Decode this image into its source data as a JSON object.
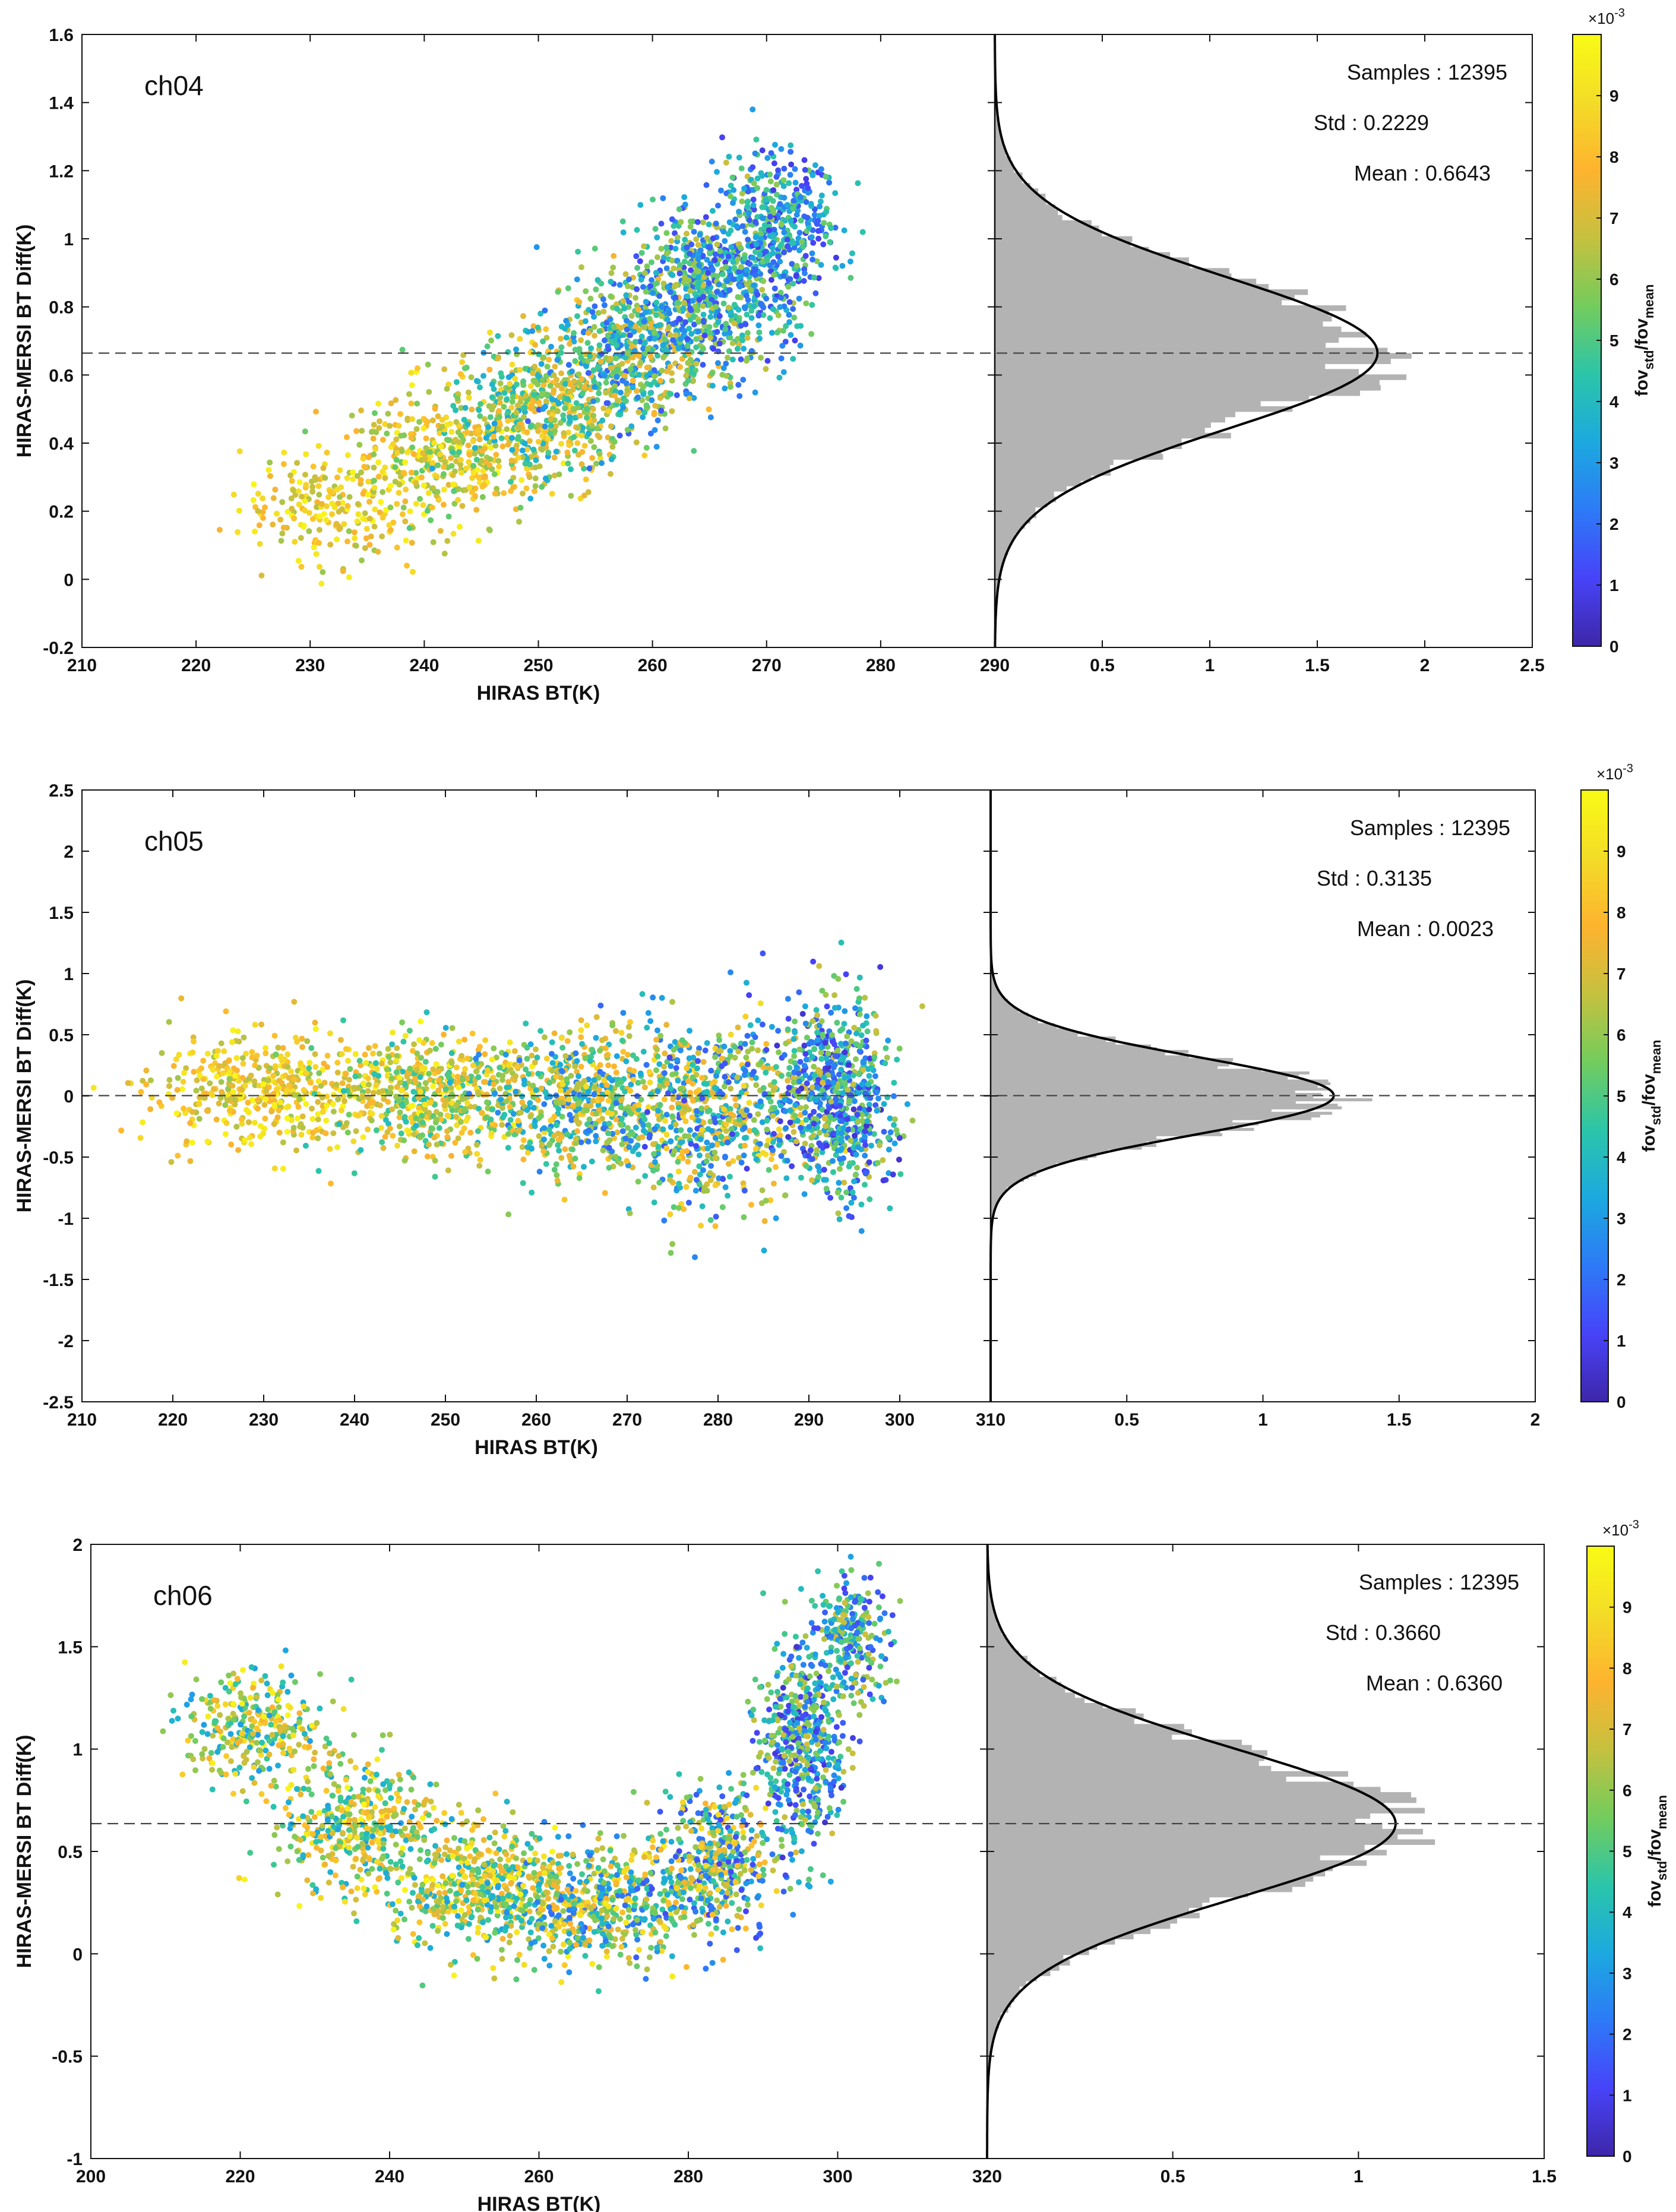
{
  "colors": {
    "hist_fill": "#b3b3b3",
    "frame": "#111111",
    "dashed": "#444444",
    "colormap": [
      "#3e26a8",
      "#4743f8",
      "#2d7af7",
      "#1ca9df",
      "#2bc5a9",
      "#73cc5d",
      "#c5c13f",
      "#feb32f",
      "#f3dc27",
      "#f9fb15"
    ]
  },
  "colorbar": {
    "ticks": [
      "0",
      "1",
      "2",
      "3",
      "4",
      "5",
      "6",
      "7",
      "8",
      "9"
    ],
    "exponent_label": "×10",
    "exponent_power": "-3",
    "title_main": "fov",
    "title_sub1": "std",
    "title_sep": "/fov",
    "title_sub2": "mean"
  },
  "chart_data": [
    {
      "type": "scatter",
      "channel": "ch04",
      "xlabel": "HIRAS BT(K)",
      "ylabel": "HIRAS-MERSI BT Diff(K)",
      "xlim": [
        210,
        290
      ],
      "ylim": [
        -0.2,
        1.6
      ],
      "xticks": [
        "210",
        "220",
        "230",
        "240",
        "250",
        "260",
        "270",
        "280",
        "290"
      ],
      "yticks": [
        "-0.2",
        "0",
        "0.2",
        "0.4",
        "0.6",
        "0.8",
        "1",
        "1.2",
        "1.4",
        "1.6"
      ],
      "hist_xlim": [
        0,
        2.5
      ],
      "hist_xticks": [
        "0.5",
        "1",
        "1.5",
        "2",
        "2.5"
      ],
      "stats": {
        "samples": "Samples : 12395",
        "std": "Std : 0.2229",
        "mean": "Mean : 0.6643"
      },
      "mean": 0.6643,
      "std": 0.2229,
      "hist_peak": 1.78,
      "cloud": [
        {
          "x": 232,
          "y": 0.22,
          "sx": 4,
          "sy": 0.09,
          "n": 220,
          "cmin": 6.0,
          "cmax": 9.9
        },
        {
          "x": 242,
          "y": 0.36,
          "sx": 4,
          "sy": 0.09,
          "n": 380,
          "cmin": 5.0,
          "cmax": 9.9
        },
        {
          "x": 250,
          "y": 0.5,
          "sx": 4,
          "sy": 0.1,
          "n": 480,
          "cmin": 3.0,
          "cmax": 9.0
        },
        {
          "x": 258,
          "y": 0.66,
          "sx": 4,
          "sy": 0.11,
          "n": 600,
          "cmin": 1.5,
          "cmax": 8.0
        },
        {
          "x": 265,
          "y": 0.86,
          "sx": 3.5,
          "sy": 0.12,
          "n": 620,
          "cmin": 1.0,
          "cmax": 7.0
        },
        {
          "x": 271,
          "y": 1.02,
          "sx": 2.5,
          "sy": 0.12,
          "n": 420,
          "cmin": 0.8,
          "cmax": 6.0
        }
      ]
    },
    {
      "type": "scatter",
      "channel": "ch05",
      "xlabel": "HIRAS BT(K)",
      "ylabel": "HIRAS-MERSI BT Diff(K)",
      "xlim": [
        210,
        310
      ],
      "ylim": [
        -2.5,
        2.5
      ],
      "xticks": [
        "210",
        "220",
        "230",
        "240",
        "250",
        "260",
        "270",
        "280",
        "290",
        "300",
        "310"
      ],
      "yticks": [
        "-2.5",
        "-2",
        "-1.5",
        "-1",
        "-0.5",
        "0",
        "0.5",
        "1",
        "1.5",
        "2",
        "2.5"
      ],
      "hist_xlim": [
        0,
        2
      ],
      "hist_xticks": [
        "0.5",
        "1",
        "1.5",
        "2"
      ],
      "stats": {
        "samples": "Samples : 12395",
        "std": "Std : 0.3135",
        "mean": "Mean : 0.0023"
      },
      "mean": 0.0023,
      "std": 0.3135,
      "hist_peak": 1.26,
      "cloud": [
        {
          "x": 230,
          "y": 0.05,
          "sx": 6,
          "sy": 0.22,
          "n": 420,
          "cmin": 6.0,
          "cmax": 9.9
        },
        {
          "x": 248,
          "y": 0.02,
          "sx": 6,
          "sy": 0.25,
          "n": 560,
          "cmin": 4.0,
          "cmax": 9.9
        },
        {
          "x": 265,
          "y": -0.05,
          "sx": 6,
          "sy": 0.3,
          "n": 620,
          "cmin": 2.0,
          "cmax": 9.0
        },
        {
          "x": 280,
          "y": -0.15,
          "sx": 5,
          "sy": 0.38,
          "n": 620,
          "cmin": 1.0,
          "cmax": 9.0
        },
        {
          "x": 293,
          "y": 0.0,
          "sx": 3,
          "sy": 0.38,
          "n": 700,
          "cmin": 0.5,
          "cmax": 7.0
        }
      ]
    },
    {
      "type": "scatter",
      "channel": "ch06",
      "xlabel": "HIRAS BT(K)",
      "ylabel": "HIRAS-MERSI BT Diff(K)",
      "xlim": [
        200,
        320
      ],
      "ylim": [
        -1,
        2
      ],
      "xticks": [
        "200",
        "220",
        "240",
        "260",
        "280",
        "300",
        "320"
      ],
      "yticks": [
        "-1",
        "-0.5",
        "0",
        "0.5",
        "1",
        "1.5",
        "2"
      ],
      "hist_xlim": [
        0,
        1.5
      ],
      "hist_xticks": [
        "0.5",
        "1",
        "1.5"
      ],
      "stats": {
        "samples": "Samples : 12395",
        "std": "Std : 0.3660",
        "mean": "Mean : 0.6360"
      },
      "mean": 0.636,
      "std": 0.366,
      "hist_peak": 1.1,
      "cloud": [
        {
          "x": 222,
          "y": 1.1,
          "sx": 5,
          "sy": 0.14,
          "n": 300,
          "cmin": 3.0,
          "cmax": 9.9
        },
        {
          "x": 236,
          "y": 0.62,
          "sx": 5,
          "sy": 0.16,
          "n": 420,
          "cmin": 3.0,
          "cmax": 9.9
        },
        {
          "x": 252,
          "y": 0.32,
          "sx": 6,
          "sy": 0.15,
          "n": 520,
          "cmin": 3.0,
          "cmax": 9.9
        },
        {
          "x": 268,
          "y": 0.25,
          "sx": 6,
          "sy": 0.14,
          "n": 520,
          "cmin": 1.5,
          "cmax": 9.5
        },
        {
          "x": 284,
          "y": 0.45,
          "sx": 4,
          "sy": 0.17,
          "n": 420,
          "cmin": 1.0,
          "cmax": 9.0
        },
        {
          "x": 295,
          "y": 1.05,
          "sx": 3,
          "sy": 0.25,
          "n": 520,
          "cmin": 0.5,
          "cmax": 7.0
        },
        {
          "x": 302,
          "y": 1.55,
          "sx": 2.5,
          "sy": 0.16,
          "n": 220,
          "cmin": 1.0,
          "cmax": 7.0
        }
      ]
    }
  ]
}
